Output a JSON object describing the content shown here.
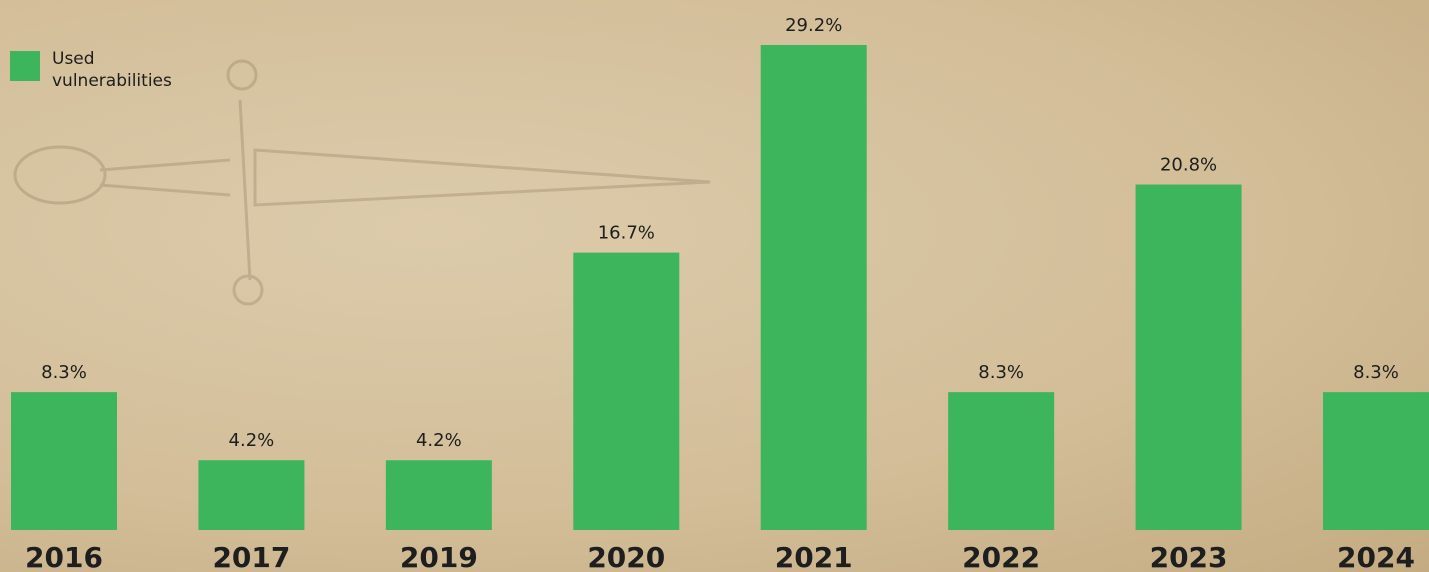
{
  "chart_data": {
    "type": "bar",
    "categories": [
      "2016",
      "2017",
      "2019",
      "2020",
      "2021",
      "2022",
      "2023",
      "2024"
    ],
    "series": [
      {
        "name": "Used vulnerabilities",
        "color": "#3db55d",
        "values": [
          8.3,
          4.2,
          4.2,
          16.7,
          29.2,
          8.3,
          20.8,
          8.3
        ],
        "value_labels": [
          "8.3%",
          "4.2%",
          "4.2%",
          "16.7%",
          "29.2%",
          "8.3%",
          "20.8%",
          "8.3%"
        ]
      }
    ],
    "legend": "top-left"
  }
}
